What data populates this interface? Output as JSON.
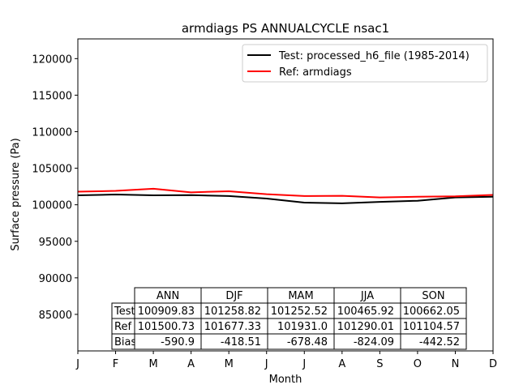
{
  "chart_data": {
    "type": "line",
    "title": "armdiags PS ANNUALCYCLE nsac1",
    "xlabel": "Month",
    "ylabel": "Surface pressure (Pa)",
    "ylim": [
      80000,
      122700
    ],
    "yticks": [
      85000,
      90000,
      95000,
      100000,
      105000,
      110000,
      115000,
      120000
    ],
    "categories": [
      "J",
      "F",
      "M",
      "A",
      "M",
      "J",
      "J",
      "A",
      "S",
      "O",
      "N",
      "D"
    ],
    "series": [
      {
        "name": "Test: processed_h6_file (1985-2014)",
        "color": "#000000",
        "values": [
          101300,
          101400,
          101300,
          101320,
          101200,
          100850,
          100300,
          100200,
          100400,
          100550,
          101000,
          101100
        ]
      },
      {
        "name": "Ref: armdiags",
        "color": "#ff0000",
        "values": [
          101800,
          101900,
          102200,
          101700,
          101850,
          101450,
          101200,
          101230,
          101000,
          101100,
          101150,
          101350
        ]
      }
    ],
    "legend": "top-right",
    "table": {
      "columns": [
        "ANN",
        "DJF",
        "MAM",
        "JJA",
        "SON"
      ],
      "rows": [
        {
          "label": "Test",
          "values": [
            "100909.83",
            "101258.82",
            "101252.52",
            "100465.92",
            "100662.05"
          ]
        },
        {
          "label": "Ref",
          "values": [
            "101500.73",
            "101677.33",
            "101931.0",
            "101290.01",
            "101104.57"
          ]
        },
        {
          "label": "Bias",
          "values": [
            "-590.9",
            "-418.51",
            "-678.48",
            "-824.09",
            "-442.52"
          ]
        }
      ]
    }
  }
}
